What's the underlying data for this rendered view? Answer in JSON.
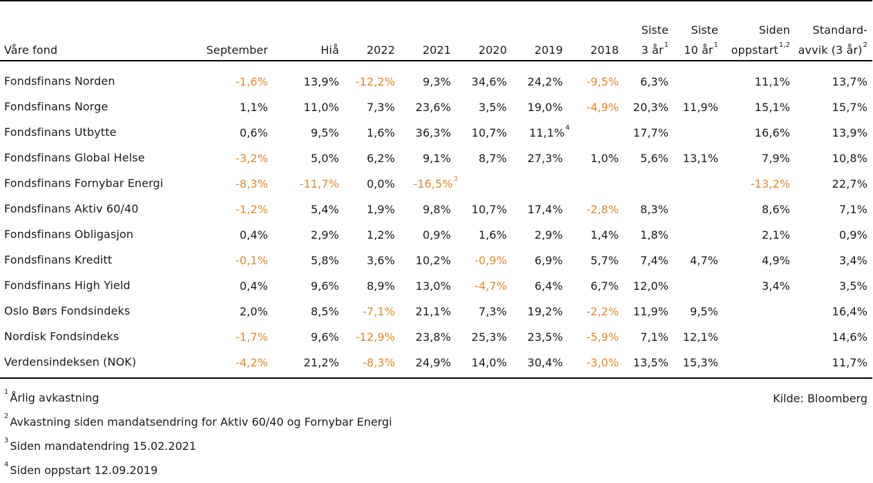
{
  "header": {
    "fund": "Våre fond",
    "cols": [
      {
        "l1": "",
        "l2": "September",
        "sup": ""
      },
      {
        "l1": "",
        "l2": "Hiå",
        "sup": ""
      },
      {
        "l1": "",
        "l2": "2022",
        "sup": ""
      },
      {
        "l1": "",
        "l2": "2021",
        "sup": ""
      },
      {
        "l1": "",
        "l2": "2020",
        "sup": ""
      },
      {
        "l1": "",
        "l2": "2019",
        "sup": ""
      },
      {
        "l1": "",
        "l2": "2018",
        "sup": ""
      },
      {
        "l1": "Siste",
        "l2": "3 år",
        "sup": "1"
      },
      {
        "l1": "Siste",
        "l2": "10 år",
        "sup": "1"
      },
      {
        "l1": "Siden",
        "l2": "oppstart",
        "sup": "1,2"
      },
      {
        "l1": "Standard-",
        "l2": "avvik (3 år)",
        "sup": "2"
      }
    ]
  },
  "rows": [
    {
      "name": "Fondsfinans Norden",
      "cells": [
        {
          "v": "-1,6%",
          "neg": true
        },
        {
          "v": "13,9%"
        },
        {
          "v": "-12,2%",
          "neg": true
        },
        {
          "v": "9,3%"
        },
        {
          "v": "34,6%"
        },
        {
          "v": "24,2%"
        },
        {
          "v": "-9,5%",
          "neg": true
        },
        {
          "v": "6,3%"
        },
        {
          "v": ""
        },
        {
          "v": "11,1%"
        },
        {
          "v": "13,7%"
        }
      ]
    },
    {
      "name": "Fondsfinans Norge",
      "cells": [
        {
          "v": "1,1%"
        },
        {
          "v": "11,0%"
        },
        {
          "v": "7,3%"
        },
        {
          "v": "23,6%"
        },
        {
          "v": "3,5%"
        },
        {
          "v": "19,0%"
        },
        {
          "v": "-4,9%",
          "neg": true
        },
        {
          "v": "20,3%"
        },
        {
          "v": "11,9%"
        },
        {
          "v": "15,1%"
        },
        {
          "v": "15,7%"
        }
      ]
    },
    {
      "name": "Fondsfinans Utbytte",
      "cells": [
        {
          "v": "0,6%"
        },
        {
          "v": "9,5%"
        },
        {
          "v": "1,6%"
        },
        {
          "v": "36,3%"
        },
        {
          "v": "10,7%"
        },
        {
          "v": "11,1%",
          "sup": "4"
        },
        {
          "v": ""
        },
        {
          "v": "17,7%"
        },
        {
          "v": ""
        },
        {
          "v": "16,6%"
        },
        {
          "v": "13,9%"
        }
      ]
    },
    {
      "name": "Fondsfinans Global Helse",
      "cells": [
        {
          "v": "-3,2%",
          "neg": true
        },
        {
          "v": "5,0%"
        },
        {
          "v": "6,2%"
        },
        {
          "v": "9,1%"
        },
        {
          "v": "8,7%"
        },
        {
          "v": "27,3%"
        },
        {
          "v": "1,0%"
        },
        {
          "v": "5,6%"
        },
        {
          "v": "13,1%"
        },
        {
          "v": "7,9%"
        },
        {
          "v": "10,8%"
        }
      ]
    },
    {
      "name": "Fondsfinans Fornybar Energi",
      "cells": [
        {
          "v": "-8,3%",
          "neg": true
        },
        {
          "v": "-11,7%",
          "neg": true
        },
        {
          "v": "0,0%"
        },
        {
          "v": "-16,5%",
          "neg": true,
          "sup": "3"
        },
        {
          "v": ""
        },
        {
          "v": ""
        },
        {
          "v": ""
        },
        {
          "v": ""
        },
        {
          "v": ""
        },
        {
          "v": "-13,2%",
          "neg": true
        },
        {
          "v": "22,7%"
        }
      ]
    },
    {
      "name": "Fondsfinans Aktiv 60/40",
      "cells": [
        {
          "v": "-1,2%",
          "neg": true
        },
        {
          "v": "5,4%"
        },
        {
          "v": "1,9%"
        },
        {
          "v": "9,8%"
        },
        {
          "v": "10,7%"
        },
        {
          "v": "17,4%"
        },
        {
          "v": "-2,8%",
          "neg": true
        },
        {
          "v": "8,3%"
        },
        {
          "v": ""
        },
        {
          "v": "8,6%"
        },
        {
          "v": "7,1%"
        }
      ]
    },
    {
      "name": "Fondsfinans Obligasjon",
      "cells": [
        {
          "v": "0,4%"
        },
        {
          "v": "2,9%"
        },
        {
          "v": "1,2%"
        },
        {
          "v": "0,9%"
        },
        {
          "v": "1,6%"
        },
        {
          "v": "2,9%"
        },
        {
          "v": "1,4%"
        },
        {
          "v": "1,8%"
        },
        {
          "v": ""
        },
        {
          "v": "2,1%"
        },
        {
          "v": "0,9%"
        }
      ]
    },
    {
      "name": "Fondsfinans Kreditt",
      "cells": [
        {
          "v": "-0,1%",
          "neg": true
        },
        {
          "v": "5,8%"
        },
        {
          "v": "3,6%"
        },
        {
          "v": "10,2%"
        },
        {
          "v": "-0,9%",
          "neg": true
        },
        {
          "v": "6,9%"
        },
        {
          "v": "5,7%"
        },
        {
          "v": "7,4%"
        },
        {
          "v": "4,7%"
        },
        {
          "v": "4,9%"
        },
        {
          "v": "3,4%"
        }
      ]
    },
    {
      "name": "Fondsfinans High Yield",
      "cells": [
        {
          "v": "0,4%"
        },
        {
          "v": "9,6%"
        },
        {
          "v": "8,9%"
        },
        {
          "v": "13,0%"
        },
        {
          "v": "-4,7%",
          "neg": true
        },
        {
          "v": "6,4%"
        },
        {
          "v": "6,7%"
        },
        {
          "v": "12,0%"
        },
        {
          "v": ""
        },
        {
          "v": "3,4%"
        },
        {
          "v": "3,5%"
        }
      ]
    },
    {
      "name": "Oslo Børs Fondsindeks",
      "cells": [
        {
          "v": "2,0%"
        },
        {
          "v": "8,5%"
        },
        {
          "v": "-7,1%",
          "neg": true
        },
        {
          "v": "21,1%"
        },
        {
          "v": "7,3%"
        },
        {
          "v": "19,2%"
        },
        {
          "v": "-2,2%",
          "neg": true
        },
        {
          "v": "11,9%"
        },
        {
          "v": "9,5%"
        },
        {
          "v": ""
        },
        {
          "v": "16,4%"
        }
      ]
    },
    {
      "name": "Nordisk Fondsindeks",
      "cells": [
        {
          "v": "-1,7%",
          "neg": true
        },
        {
          "v": "9,6%"
        },
        {
          "v": "-12,9%",
          "neg": true
        },
        {
          "v": "23,8%"
        },
        {
          "v": "25,3%"
        },
        {
          "v": "23,5%"
        },
        {
          "v": "-5,9%",
          "neg": true
        },
        {
          "v": "7,1%"
        },
        {
          "v": "12,1%"
        },
        {
          "v": ""
        },
        {
          "v": "14,6%"
        }
      ]
    },
    {
      "name": "Verdensindeksen (NOK)",
      "cells": [
        {
          "v": "-4,2%",
          "neg": true
        },
        {
          "v": "21,2%"
        },
        {
          "v": "-8,3%",
          "neg": true
        },
        {
          "v": "24,9%"
        },
        {
          "v": "14,0%"
        },
        {
          "v": "30,4%"
        },
        {
          "v": "-3,0%",
          "neg": true
        },
        {
          "v": "13,5%"
        },
        {
          "v": "15,3%"
        },
        {
          "v": ""
        },
        {
          "v": "11,7%"
        }
      ]
    }
  ],
  "footnotes": [
    {
      "sup": "1",
      "text": "Årlig avkastning"
    },
    {
      "sup": "2",
      "text": "Avkastning siden mandatsendring for Aktiv 60/40 og Fornybar Energi"
    },
    {
      "sup": "3",
      "text": "Siden mandatendring 15.02.2021"
    },
    {
      "sup": "4",
      "text": "Siden oppstart 12.09.2019"
    }
  ],
  "source": "Kilde: Bloomberg",
  "colors": {
    "negative": "#e0882a",
    "text": "#1a1a1a"
  }
}
